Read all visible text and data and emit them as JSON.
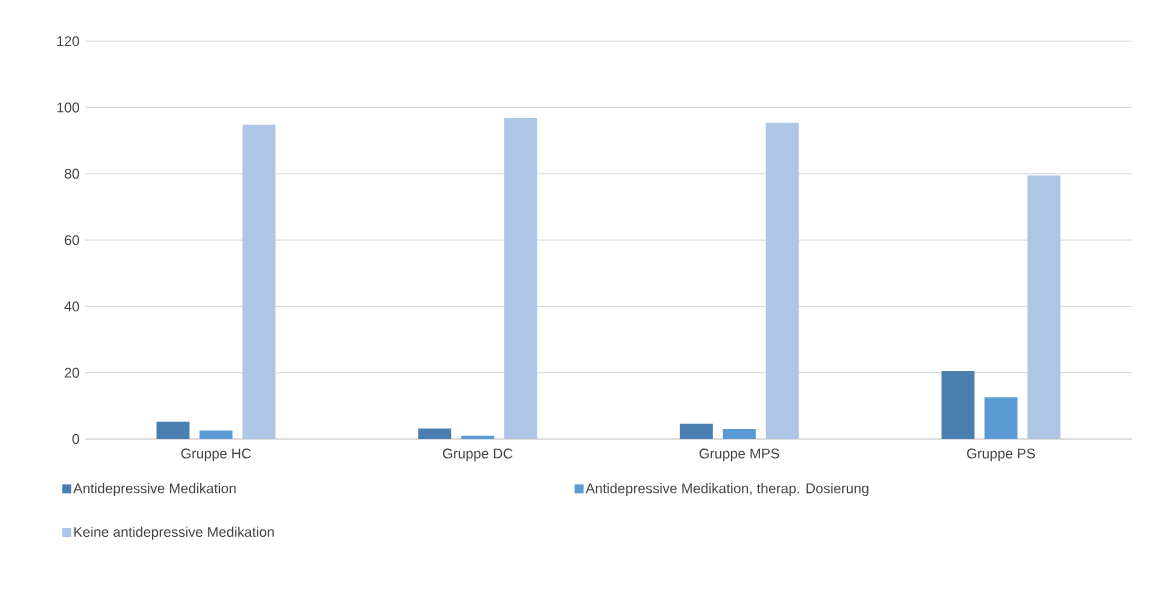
{
  "chart_data": {
    "type": "bar",
    "categories": [
      "Gruppe HC",
      "Gruppe DC",
      "Gruppe MPS",
      "Gruppe PS"
    ],
    "series": [
      {
        "name": "Antidepressive Medikation",
        "color": "#4a7eb0",
        "values": [
          5.2,
          3.2,
          4.6,
          20.5
        ]
      },
      {
        "name": "Antidepressive Medikation, therap. Dosierung",
        "color": "#5b9bd5",
        "values": [
          2.6,
          1.0,
          3.0,
          12.6
        ]
      },
      {
        "name": "Keine antidepressive Medikation",
        "color": "#adc6e5",
        "values": [
          94.8,
          96.8,
          95.4,
          79.5
        ]
      }
    ],
    "ylim": [
      0,
      120
    ],
    "yticks": [
      0,
      20,
      40,
      60,
      80,
      100,
      120
    ],
    "grid": "y",
    "legend": "bottom"
  }
}
